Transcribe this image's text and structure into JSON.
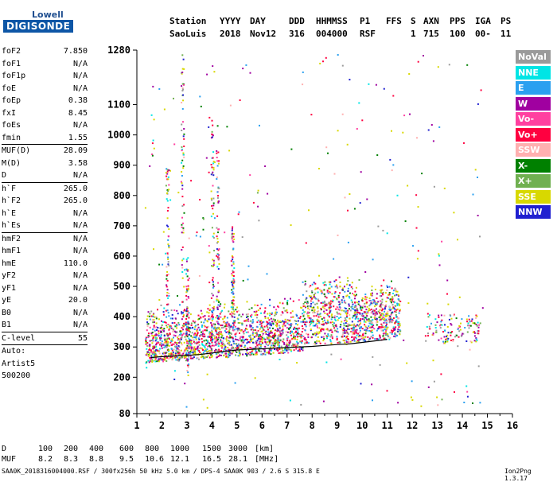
{
  "logo": {
    "line1": "Lowell",
    "line2": "DIGISONDE"
  },
  "header": {
    "row1": [
      "Station",
      "YYYY",
      "DAY",
      "DDD",
      "HHMMSS",
      "P1",
      "FFS",
      "S",
      "AXN",
      "PPS",
      "IGA",
      "PS"
    ],
    "row2": [
      "SaoLuis",
      "2018",
      "Nov12",
      "316",
      "004000",
      "RSF",
      "",
      "1",
      "715",
      "100",
      "00-",
      "11"
    ]
  },
  "params": [
    {
      "group": [
        {
          "k": "foF2",
          "v": "7.850"
        },
        {
          "k": "foF1",
          "v": "N/A"
        },
        {
          "k": "foF1p",
          "v": "N/A"
        },
        {
          "k": "foE",
          "v": "N/A"
        },
        {
          "k": "foEp",
          "v": "0.38"
        },
        {
          "k": "fxI",
          "v": "8.45"
        },
        {
          "k": "foEs",
          "v": "N/A"
        },
        {
          "k": "fmin",
          "v": "1.55"
        }
      ]
    },
    {
      "group": [
        {
          "k": "MUF(D)",
          "v": "28.09"
        },
        {
          "k": "M(D)",
          "v": "3.58"
        },
        {
          "k": "D",
          "v": "N/A"
        }
      ]
    },
    {
      "group": [
        {
          "k": "h`F",
          "v": "265.0"
        },
        {
          "k": "h`F2",
          "v": "265.0"
        },
        {
          "k": "h`E",
          "v": "N/A"
        },
        {
          "k": "h`Es",
          "v": "N/A"
        }
      ]
    },
    {
      "group": [
        {
          "k": "hmF2",
          "v": "N/A"
        },
        {
          "k": "hmF1",
          "v": "N/A"
        },
        {
          "k": "hmE",
          "v": "110.0"
        },
        {
          "k": "yF2",
          "v": "N/A"
        },
        {
          "k": "yF1",
          "v": "N/A"
        },
        {
          "k": "yE",
          "v": "20.0"
        },
        {
          "k": "B0",
          "v": "N/A"
        },
        {
          "k": "B1",
          "v": "N/A"
        }
      ]
    },
    {
      "group": [
        {
          "k": "C-level",
          "v": "55"
        }
      ]
    }
  ],
  "scaler": {
    "line1": "Auto:",
    "line2": "Artist5",
    "line3": "500200"
  },
  "legend": [
    {
      "label": "NoVal",
      "color": "#9a9a9a"
    },
    {
      "label": "NNE",
      "color": "#00e5e5"
    },
    {
      "label": "E",
      "color": "#2aa0f0"
    },
    {
      "label": "W",
      "color": "#a000a0"
    },
    {
      "label": "Vo-",
      "color": "#ff40a0"
    },
    {
      "label": "Vo+",
      "color": "#ff0040"
    },
    {
      "label": "SSW",
      "color": "#ffb0b0"
    },
    {
      "label": "X-",
      "color": "#008000"
    },
    {
      "label": "X+",
      "color": "#70b050"
    },
    {
      "label": "SSE",
      "color": "#d8d800"
    },
    {
      "label": "NNW",
      "color": "#2020d0"
    }
  ],
  "muf_table": {
    "row1_label": "D",
    "row1": [
      "100",
      "200",
      "400",
      "600",
      "800",
      "1000",
      "1500",
      "3000",
      "[km]"
    ],
    "row2_label": "MUF",
    "row2": [
      "8.2",
      "8.3",
      "8.8",
      "9.5",
      "10.6",
      "12.1",
      "16.5",
      "28.1",
      "[MHz]"
    ]
  },
  "footer": {
    "info": "SAA0K_2018316004000.RSF / 300fx256h 50 kHz 5.0 km / DPS-4 SAA0K 903 / 2.6 S 315.8 E",
    "version": "Ion2Png 1.3.17"
  },
  "chart_data": {
    "type": "scatter",
    "title": "",
    "xlabel": "",
    "ylabel": "",
    "xlim": [
      1,
      16
    ],
    "ylim": [
      80,
      1280
    ],
    "xticks": [
      1,
      2,
      3,
      4,
      5,
      6,
      7,
      8,
      9,
      10,
      11,
      12,
      13,
      14,
      15,
      16
    ],
    "yticks": [
      80,
      200,
      300,
      400,
      500,
      600,
      700,
      800,
      900,
      1000,
      1100,
      1280
    ],
    "trace": {
      "x": [
        1.55,
        2.0,
        2.5,
        3.0,
        3.5,
        4.0,
        4.5,
        5.0,
        5.5,
        6.0,
        6.5,
        7.0,
        7.5,
        8.0,
        8.5,
        9.0,
        9.5,
        10.0,
        10.5,
        11.0
      ],
      "y": [
        265,
        268,
        270,
        272,
        275,
        280,
        285,
        290,
        292,
        294,
        296,
        298,
        300,
        302,
        305,
        308,
        310,
        315,
        320,
        325
      ]
    },
    "trace_color": "#000000"
  }
}
